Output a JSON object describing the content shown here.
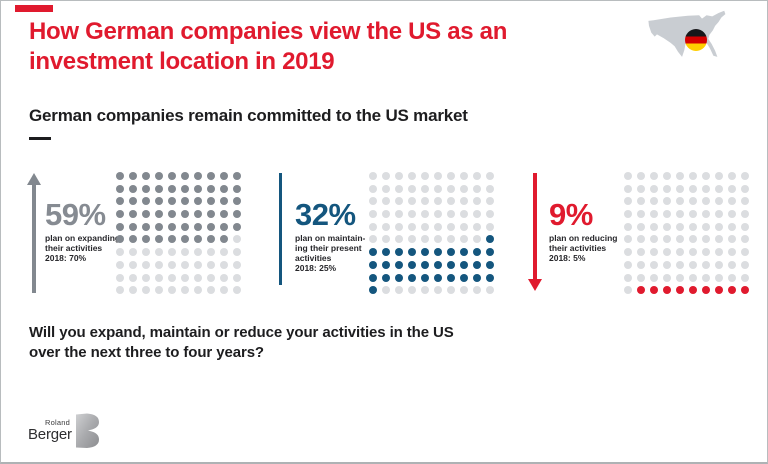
{
  "slide": {
    "title_lines": [
      "How German companies view the US as an",
      "investment location in 2019"
    ],
    "subtitle": "German companies remain committed to the US market",
    "question_lines": [
      "Will you expand, maintain or reduce your activities in the US",
      "over the next three to four years?"
    ]
  },
  "header": {
    "icons": [
      "us-map-icon",
      "german-flag-icon"
    ]
  },
  "colors": {
    "brand_red": "#e01a2e",
    "gray": "#82888f",
    "blue": "#14567e",
    "empty_dot_gray": "#dbdde0",
    "map_gray": "#c9cdd2",
    "text_black": "#1d1d1f"
  },
  "chart_data": {
    "type": "dot-matrix",
    "title": "German companies remain committed to the US market",
    "question": "Will you expand, maintain or reduce your activities in the US over the next three to four years?",
    "unit": "percent of surveyed German companies; each grid = 100 dots",
    "empty_dot_color": "#dbdde0",
    "categories": [
      "expand",
      "maintain",
      "reduce"
    ],
    "series": [
      {
        "name": "expand",
        "percent_label": "59%",
        "value_2019": 59,
        "value_2018": 70,
        "label_lines": [
          "plan on expanding",
          "their activities",
          "2018: 70%"
        ],
        "indicator": "arrow-up",
        "color": "#82888f",
        "dot_grid": {
          "rows": 10,
          "cols": 10,
          "fill_start": 1,
          "fill_count": 59
        }
      },
      {
        "name": "maintain",
        "percent_label": "32%",
        "value_2019": 32,
        "value_2018": 25,
        "label_lines": [
          "plan on maintain-",
          "ing their present",
          "activities",
          "2018: 25%"
        ],
        "indicator": "vertical-line",
        "color": "#14567e",
        "dot_grid": {
          "rows": 10,
          "cols": 10,
          "fill_start": 60,
          "fill_count": 32
        }
      },
      {
        "name": "reduce",
        "percent_label": "9%",
        "value_2019": 9,
        "value_2018": 5,
        "label_lines": [
          "plan on reducing",
          "their activities",
          "2018: 5%"
        ],
        "indicator": "arrow-down",
        "color": "#e01a2e",
        "dot_grid": {
          "rows": 10,
          "cols": 10,
          "fill_start": 92,
          "fill_count": 9
        }
      }
    ]
  },
  "logo": {
    "roland": "Roland",
    "berger": "Berger"
  }
}
